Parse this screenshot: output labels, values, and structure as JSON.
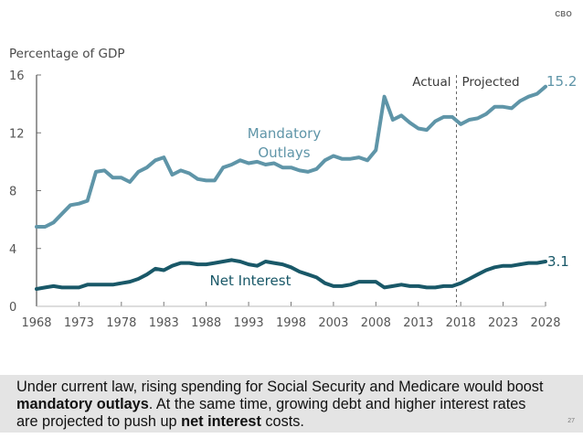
{
  "brand": "CBO",
  "page_number": "27",
  "caption": {
    "part1": "Under current law, rising spending for Social Security and Medicare would boost ",
    "bold1": "mandatory outlays",
    "part2": ". At the same time, growing debt and higher interest rates are projected to push up ",
    "bold2": "net interest",
    "part3": " costs."
  },
  "colors": {
    "mandatory": "#5f95a8",
    "net_interest": "#195868",
    "axis": "#555555",
    "caption_bg": "#e4e4e4"
  },
  "chart_data": {
    "type": "line",
    "title": "",
    "ylabel": "Percentage of GDP",
    "xlabel": "",
    "xlim": [
      1968,
      2028
    ],
    "ylim": [
      0,
      16
    ],
    "yticks": [
      0,
      4,
      8,
      12,
      16
    ],
    "xticks": [
      1968,
      1973,
      1978,
      1983,
      1988,
      1993,
      1998,
      2003,
      2008,
      2013,
      2018,
      2023,
      2028
    ],
    "grid": false,
    "divider": {
      "x": 2017.5,
      "left_label": "Actual",
      "right_label": "Projected"
    },
    "x": [
      1968,
      1969,
      1970,
      1971,
      1972,
      1973,
      1974,
      1975,
      1976,
      1977,
      1978,
      1979,
      1980,
      1981,
      1982,
      1983,
      1984,
      1985,
      1986,
      1987,
      1988,
      1989,
      1990,
      1991,
      1992,
      1993,
      1994,
      1995,
      1996,
      1997,
      1998,
      1999,
      2000,
      2001,
      2002,
      2003,
      2004,
      2005,
      2006,
      2007,
      2008,
      2009,
      2010,
      2011,
      2012,
      2013,
      2014,
      2015,
      2016,
      2017,
      2018,
      2019,
      2020,
      2021,
      2022,
      2023,
      2024,
      2025,
      2026,
      2027,
      2028
    ],
    "series": [
      {
        "name": "Mandatory Outlays",
        "label_lines": [
          "Mandatory",
          "Outlays"
        ],
        "end_label": "15.2",
        "values": [
          5.5,
          5.5,
          5.8,
          6.4,
          7.0,
          7.1,
          7.3,
          9.3,
          9.4,
          8.9,
          8.9,
          8.6,
          9.3,
          9.6,
          10.1,
          10.3,
          9.1,
          9.4,
          9.2,
          8.8,
          8.7,
          8.7,
          9.6,
          9.8,
          10.1,
          9.9,
          10.0,
          9.8,
          9.9,
          9.6,
          9.6,
          9.4,
          9.3,
          9.5,
          10.1,
          10.4,
          10.2,
          10.2,
          10.3,
          10.1,
          10.8,
          14.5,
          12.9,
          13.2,
          12.7,
          12.3,
          12.2,
          12.8,
          13.1,
          13.1,
          12.6,
          12.9,
          13.0,
          13.3,
          13.8,
          13.8,
          13.7,
          14.2,
          14.5,
          14.7,
          15.2
        ]
      },
      {
        "name": "Net Interest",
        "label_lines": [
          "Net Interest"
        ],
        "end_label": "3.1",
        "values": [
          1.2,
          1.3,
          1.4,
          1.3,
          1.3,
          1.3,
          1.5,
          1.5,
          1.5,
          1.5,
          1.6,
          1.7,
          1.9,
          2.2,
          2.6,
          2.5,
          2.8,
          3.0,
          3.0,
          2.9,
          2.9,
          3.0,
          3.1,
          3.2,
          3.1,
          2.9,
          2.8,
          3.1,
          3.0,
          2.9,
          2.7,
          2.4,
          2.2,
          2.0,
          1.6,
          1.4,
          1.4,
          1.5,
          1.7,
          1.7,
          1.7,
          1.3,
          1.4,
          1.5,
          1.4,
          1.4,
          1.3,
          1.3,
          1.4,
          1.4,
          1.6,
          1.9,
          2.2,
          2.5,
          2.7,
          2.8,
          2.8,
          2.9,
          3.0,
          3.0,
          3.1
        ]
      }
    ]
  }
}
